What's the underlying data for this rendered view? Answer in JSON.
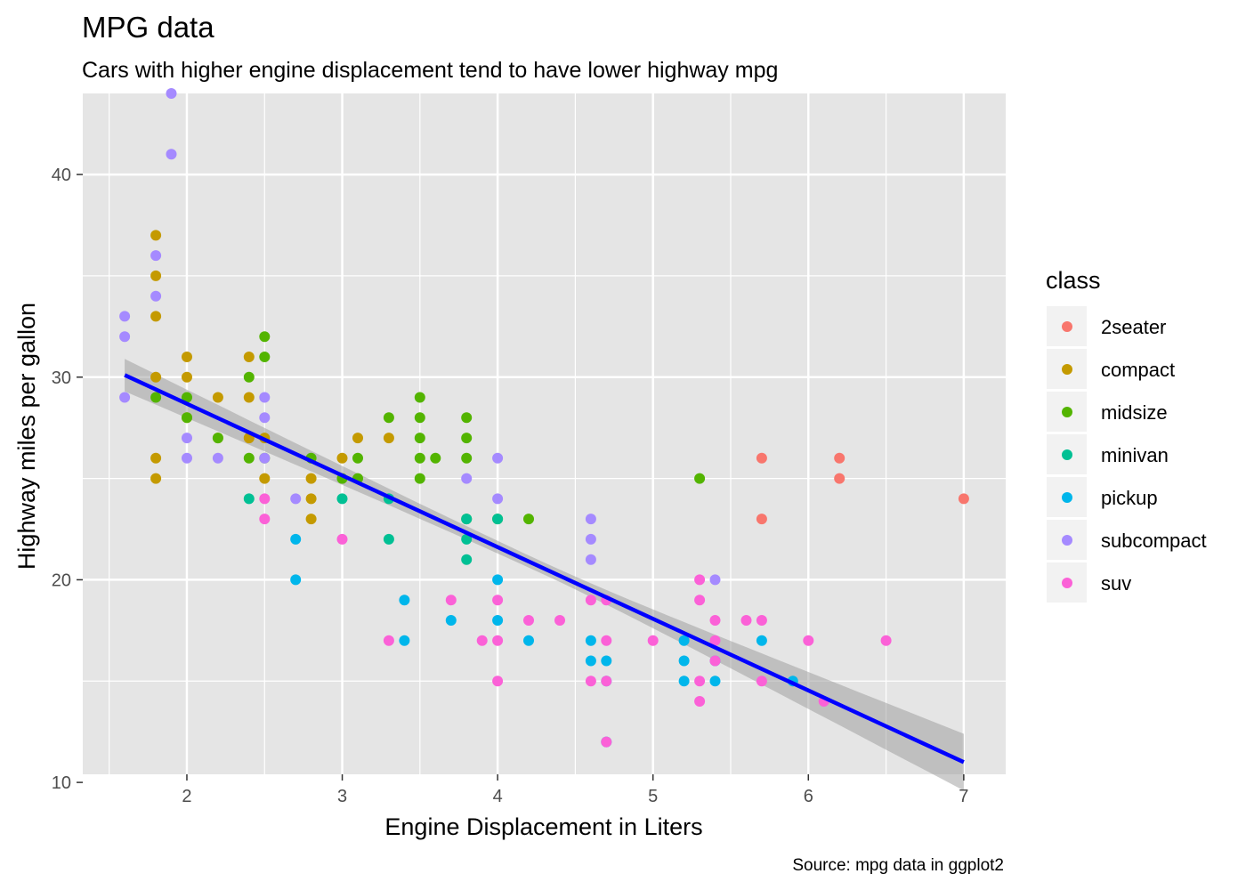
{
  "chart_data": {
    "type": "scatter",
    "title": "MPG data",
    "subtitle": "Cars with higher engine displacement tend to have lower highway mpg",
    "xlabel": "Engine Displacement in Liters",
    "ylabel": "Highway miles per gallon",
    "caption": "Source: mpg data in ggplot2",
    "xlim": [
      1.33,
      7.27
    ],
    "ylim": [
      10.4,
      44.0
    ],
    "x_ticks": [
      2,
      3,
      4,
      5,
      6,
      7
    ],
    "y_ticks": [
      10,
      20,
      30,
      40
    ],
    "grid": true,
    "legend": {
      "title": "class",
      "placement": "right"
    },
    "background_color": "#e5e5e5",
    "grid_color": "#ffffff",
    "series": [
      {
        "name": "2seater",
        "color": "#f8766d",
        "points": [
          [
            5.7,
            26
          ],
          [
            5.7,
            23
          ],
          [
            6.2,
            26
          ],
          [
            6.2,
            25
          ],
          [
            7.0,
            24
          ]
        ]
      },
      {
        "name": "compact",
        "color": "#c49a00",
        "points": [
          [
            1.8,
            37
          ],
          [
            1.8,
            35
          ],
          [
            1.8,
            33
          ],
          [
            1.8,
            30
          ],
          [
            1.8,
            26
          ],
          [
            1.8,
            25
          ],
          [
            2.0,
            31
          ],
          [
            2.0,
            30
          ],
          [
            2.0,
            28
          ],
          [
            2.2,
            29
          ],
          [
            2.2,
            27
          ],
          [
            2.4,
            31
          ],
          [
            2.4,
            29
          ],
          [
            2.4,
            27
          ],
          [
            2.5,
            27
          ],
          [
            2.5,
            25
          ],
          [
            2.8,
            25
          ],
          [
            2.8,
            24
          ],
          [
            2.8,
            23
          ],
          [
            3.0,
            26
          ],
          [
            3.1,
            27
          ],
          [
            3.3,
            27
          ]
        ]
      },
      {
        "name": "midsize",
        "color": "#53b400",
        "points": [
          [
            1.8,
            29
          ],
          [
            2.0,
            29
          ],
          [
            2.0,
            28
          ],
          [
            2.2,
            27
          ],
          [
            2.4,
            30
          ],
          [
            2.4,
            26
          ],
          [
            2.5,
            32
          ],
          [
            2.5,
            31
          ],
          [
            2.5,
            26
          ],
          [
            2.8,
            26
          ],
          [
            3.0,
            25
          ],
          [
            3.1,
            26
          ],
          [
            3.1,
            25
          ],
          [
            3.3,
            28
          ],
          [
            3.5,
            29
          ],
          [
            3.5,
            28
          ],
          [
            3.5,
            27
          ],
          [
            3.5,
            26
          ],
          [
            3.5,
            25
          ],
          [
            3.6,
            26
          ],
          [
            3.8,
            28
          ],
          [
            3.8,
            27
          ],
          [
            3.8,
            26
          ],
          [
            3.8,
            23
          ],
          [
            4.0,
            23
          ],
          [
            4.2,
            23
          ],
          [
            5.3,
            25
          ]
        ]
      },
      {
        "name": "minivan",
        "color": "#00c094",
        "points": [
          [
            2.4,
            24
          ],
          [
            3.0,
            24
          ],
          [
            3.3,
            24
          ],
          [
            3.3,
            22
          ],
          [
            3.8,
            23
          ],
          [
            3.8,
            22
          ],
          [
            3.8,
            21
          ],
          [
            4.0,
            23
          ]
        ]
      },
      {
        "name": "pickup",
        "color": "#00b6eb",
        "points": [
          [
            2.7,
            22
          ],
          [
            2.7,
            20
          ],
          [
            3.4,
            19
          ],
          [
            3.4,
            17
          ],
          [
            3.7,
            18
          ],
          [
            4.0,
            20
          ],
          [
            4.0,
            18
          ],
          [
            4.2,
            17
          ],
          [
            4.6,
            17
          ],
          [
            4.6,
            16
          ],
          [
            4.7,
            16
          ],
          [
            4.7,
            15
          ],
          [
            4.7,
            12
          ],
          [
            5.2,
            17
          ],
          [
            5.2,
            16
          ],
          [
            5.2,
            15
          ],
          [
            5.4,
            16
          ],
          [
            5.4,
            15
          ],
          [
            5.7,
            17
          ],
          [
            5.9,
            15
          ]
        ]
      },
      {
        "name": "subcompact",
        "color": "#a58aff",
        "points": [
          [
            1.6,
            33
          ],
          [
            1.6,
            32
          ],
          [
            1.6,
            29
          ],
          [
            1.8,
            36
          ],
          [
            1.8,
            34
          ],
          [
            1.9,
            44
          ],
          [
            1.9,
            41
          ],
          [
            2.0,
            27
          ],
          [
            2.0,
            26
          ],
          [
            2.2,
            26
          ],
          [
            2.5,
            29
          ],
          [
            2.5,
            28
          ],
          [
            2.5,
            26
          ],
          [
            2.7,
            24
          ],
          [
            3.8,
            25
          ],
          [
            4.0,
            26
          ],
          [
            4.0,
            24
          ],
          [
            4.6,
            23
          ],
          [
            4.6,
            22
          ],
          [
            4.6,
            21
          ],
          [
            5.4,
            20
          ]
        ]
      },
      {
        "name": "suv",
        "color": "#fb61d7",
        "points": [
          [
            2.5,
            24
          ],
          [
            2.5,
            23
          ],
          [
            3.0,
            22
          ],
          [
            3.3,
            17
          ],
          [
            3.7,
            19
          ],
          [
            3.9,
            17
          ],
          [
            4.0,
            19
          ],
          [
            4.0,
            17
          ],
          [
            4.0,
            15
          ],
          [
            4.2,
            18
          ],
          [
            4.4,
            18
          ],
          [
            4.6,
            19
          ],
          [
            4.6,
            15
          ],
          [
            4.7,
            19
          ],
          [
            4.7,
            17
          ],
          [
            4.7,
            15
          ],
          [
            4.7,
            12
          ],
          [
            5.0,
            17
          ],
          [
            5.3,
            20
          ],
          [
            5.3,
            19
          ],
          [
            5.3,
            15
          ],
          [
            5.3,
            14
          ],
          [
            5.4,
            18
          ],
          [
            5.4,
            17
          ],
          [
            5.4,
            16
          ],
          [
            5.6,
            18
          ],
          [
            5.7,
            18
          ],
          [
            5.7,
            15
          ],
          [
            6.0,
            17
          ],
          [
            6.1,
            14
          ],
          [
            6.5,
            17
          ]
        ]
      }
    ],
    "trend": {
      "type": "linear",
      "color": "#0000ff",
      "ribbon_color": "#999999",
      "x_range": [
        1.6,
        7.0
      ],
      "y_at_start": 30.1,
      "y_at_end": 11.0,
      "ci_half_width_start": 0.8,
      "ci_half_width_mid": 0.3,
      "ci_half_width_end": 1.4
    }
  }
}
